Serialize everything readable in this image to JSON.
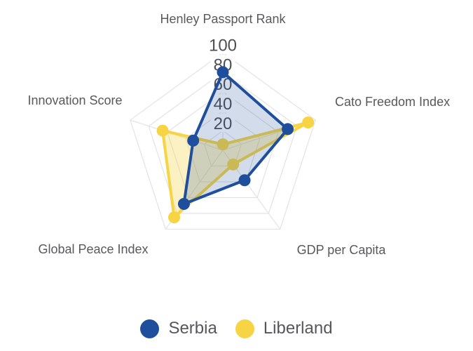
{
  "chart_data": {
    "type": "radar",
    "title": "",
    "axes": [
      "Henley Passport Rank",
      "Cato Freedom Index",
      "GDP per Capita",
      "Global Peace Index",
      "Innovation Score"
    ],
    "series": [
      {
        "name": "Serbia",
        "color": "#1F4E9C",
        "fill_color": "rgba(31,78,156,0.20)",
        "values": [
          80,
          70,
          38,
          68,
          32
        ]
      },
      {
        "name": "Liberland",
        "color": "#F6D443",
        "fill_color": "rgba(246,212,67,0.32)",
        "values": [
          6,
          92,
          18,
          85,
          65
        ]
      }
    ],
    "scale": {
      "min": 0,
      "max": 100,
      "tick_step": 20,
      "ticks": [
        20,
        40,
        60,
        80,
        100
      ]
    },
    "grid": {
      "visible": true,
      "shape": "pentagon",
      "color": "#E3E3E3"
    },
    "legend_position": "bottom",
    "text_color": "#58595B",
    "tick_text_color": "#4E5054",
    "background": "#FFFFFF"
  }
}
